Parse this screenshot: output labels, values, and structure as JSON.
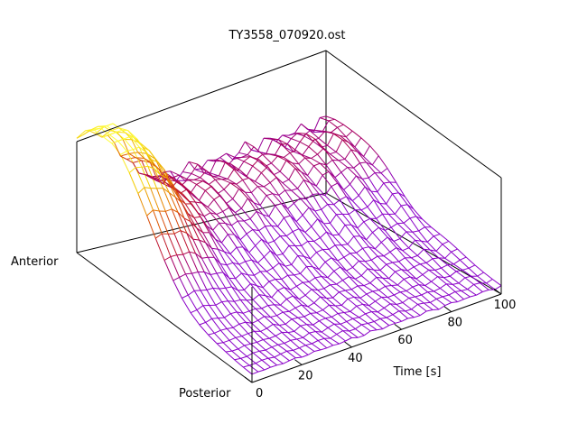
{
  "chart_data": {
    "type": "surface",
    "render_style": "wireframe",
    "title": "TY3558_070920.ost",
    "xlabel": "Time [s]",
    "y_axis_end_labels": [
      "Anterior",
      "Posterior"
    ],
    "x_ticks": [
      0,
      20,
      40,
      60,
      80,
      100
    ],
    "x_range": [
      0,
      100
    ],
    "grid": false,
    "legend": "none",
    "colormap": [
      "#8a00c8",
      "#b4003c",
      "#e05a00",
      "#f2c800",
      "#ffff40"
    ],
    "surface": {
      "time_s": [
        0,
        2.5,
        5,
        7.5,
        10,
        12.5,
        15,
        17.5,
        20,
        22.5,
        25,
        27.5,
        30,
        32.5,
        35,
        37.5,
        40,
        42.5,
        45,
        47.5,
        50,
        52.5,
        55,
        57.5,
        60,
        62.5,
        65,
        67.5,
        70,
        72.5,
        75,
        77.5,
        80,
        82.5,
        85,
        87.5,
        90,
        92.5,
        95,
        97.5,
        100
      ],
      "position_anterior_to_posterior": [
        0,
        0.05,
        0.1,
        0.15,
        0.2,
        0.25,
        0.3,
        0.35,
        0.4,
        0.45,
        0.5,
        0.55,
        0.6,
        0.65,
        0.7,
        0.75,
        0.8,
        0.85,
        0.9,
        0.95,
        1
      ],
      "peak_intensity_near_time_s": 5,
      "peak_intensity_near_position": 0.2,
      "relative_intensity_range": [
        0.06,
        1.0
      ]
    }
  }
}
